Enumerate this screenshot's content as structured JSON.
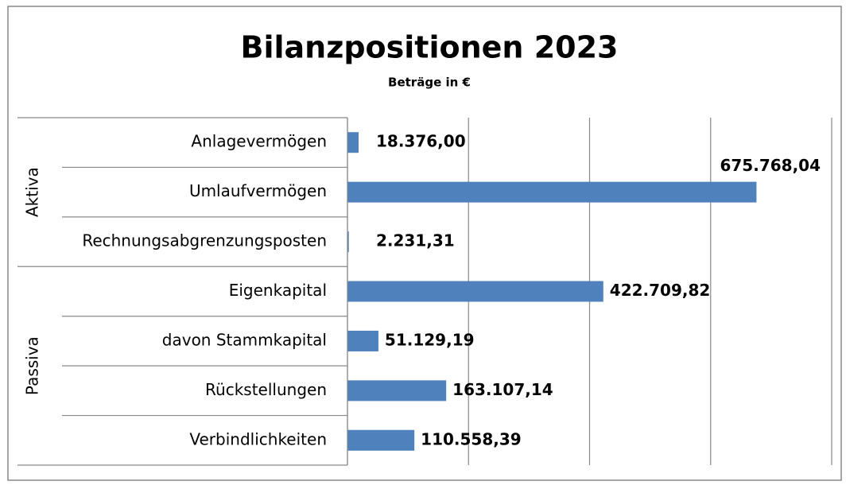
{
  "chart_data": {
    "type": "bar",
    "orientation": "horizontal",
    "title": "Bilanzpositionen 2023",
    "subtitle": "Beträge in €",
    "color": "#4f81bd",
    "grid": true,
    "xlim": [
      0,
      800000
    ],
    "xticks": [
      0,
      200000,
      400000,
      600000,
      800000
    ],
    "groups": [
      {
        "label": "Aktiva",
        "categories": [
          "Anlagevermögen",
          "Umlaufvermögen",
          "Rechnungsabgrenzungsposten"
        ],
        "values": [
          18376.0,
          675768.04,
          2231.31
        ],
        "value_labels": [
          "18.376,00",
          "675.768,04",
          "2.231,31"
        ]
      },
      {
        "label": "Passiva",
        "categories": [
          "Eigenkapital",
          "davon Stammkapital",
          "Rückstellungen",
          "Verbindlichkeiten"
        ],
        "values": [
          422709.82,
          51129.19,
          163107.14,
          110558.39
        ],
        "value_labels": [
          "422.709,82",
          "51.129,19",
          "163.107,14",
          "110.558,39"
        ]
      }
    ]
  }
}
